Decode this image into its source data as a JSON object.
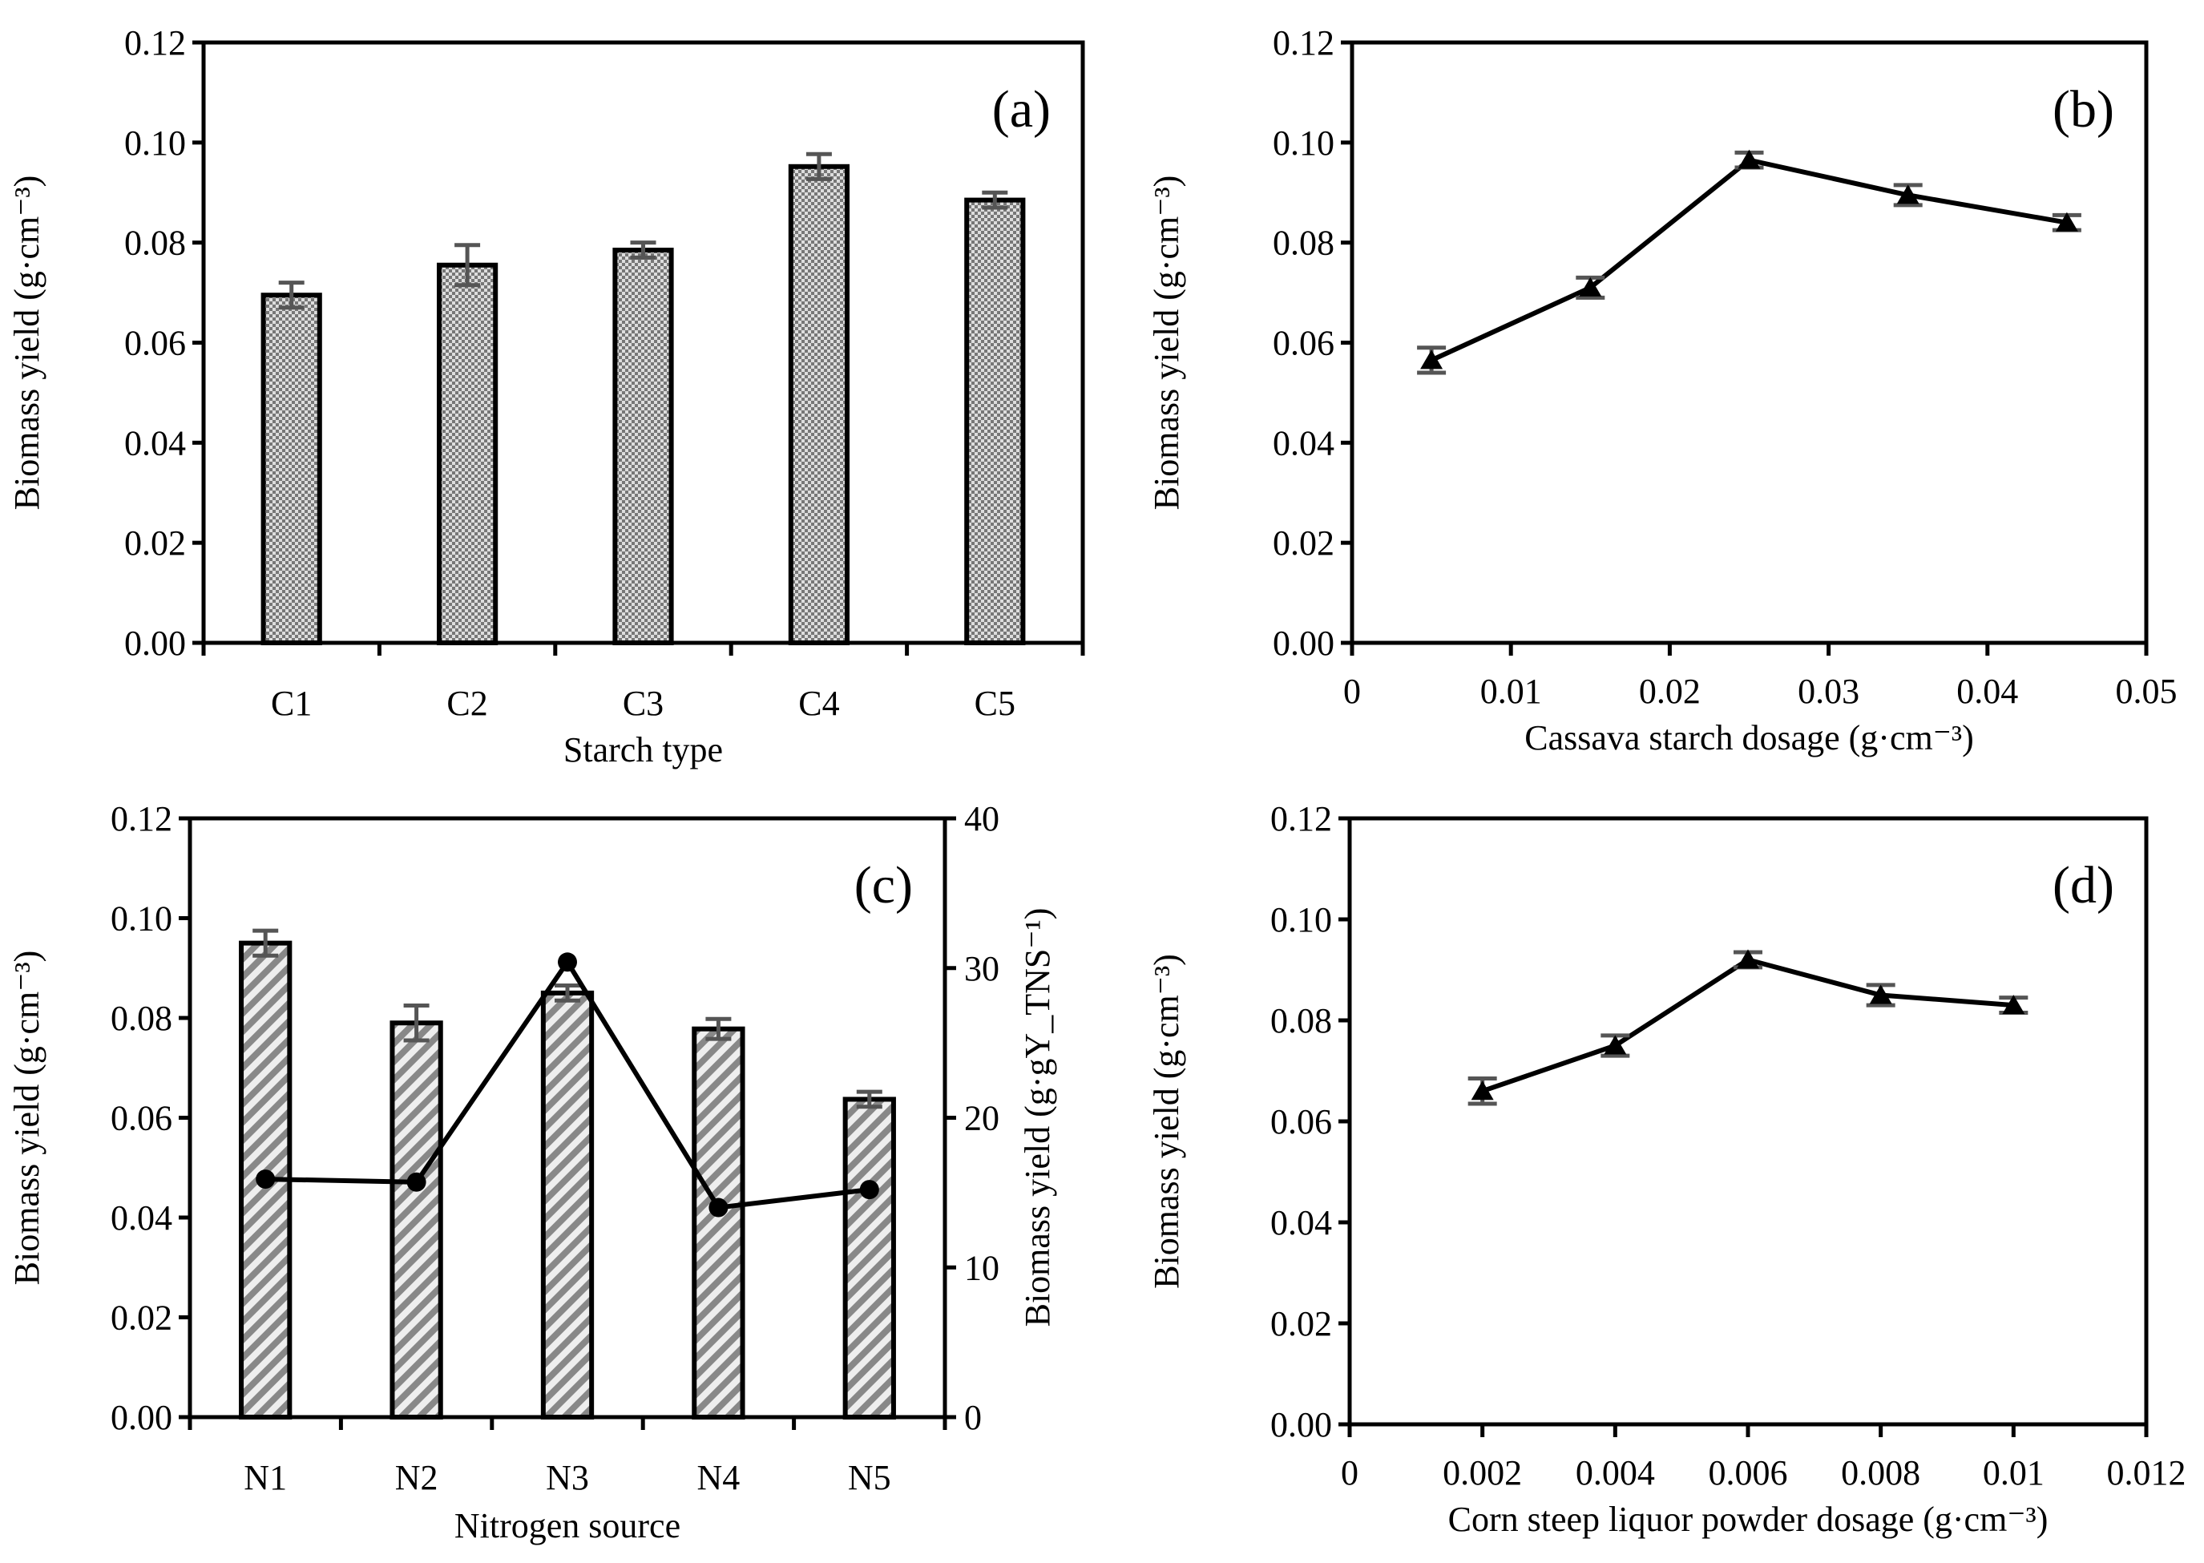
{
  "chart_data": [
    {
      "panel": "(a)",
      "type": "bar",
      "xlabel": "Starch type",
      "ylabel": "Biomass yield (g·cm⁻³)",
      "categories": [
        "C1",
        "C2",
        "C3",
        "C4",
        "C5"
      ],
      "values": [
        0.0695,
        0.0755,
        0.0785,
        0.0952,
        0.0885
      ],
      "errors": [
        0.0025,
        0.004,
        0.0015,
        0.0025,
        0.0015
      ],
      "ylim": [
        0,
        0.12
      ],
      "yticks": [
        "0.00",
        "0.02",
        "0.04",
        "0.06",
        "0.08",
        "0.10",
        "0.12"
      ],
      "pattern": "checker"
    },
    {
      "panel": "(b)",
      "type": "line",
      "xlabel": "Cassava starch dosage (g·cm⁻³)",
      "ylabel": "Biomass yield (g·cm⁻³)",
      "x": [
        0.005,
        0.015,
        0.025,
        0.035,
        0.045
      ],
      "values": [
        0.0565,
        0.071,
        0.0965,
        0.0895,
        0.084
      ],
      "errors": [
        0.0025,
        0.002,
        0.0015,
        0.002,
        0.0015
      ],
      "xlim": [
        0,
        0.05
      ],
      "xticks": [
        "0",
        "0.01",
        "0.02",
        "0.03",
        "0.04",
        "0.05"
      ],
      "ylim": [
        0,
        0.12
      ],
      "yticks": [
        "0.00",
        "0.02",
        "0.04",
        "0.06",
        "0.08",
        "0.10",
        "0.12"
      ],
      "marker": "triangle"
    },
    {
      "panel": "(c)",
      "type": "bar",
      "xlabel": "Nitrogen source",
      "ylabel": "Biomass yield (g·cm⁻³)",
      "y2label": "Biomass yield (g·gY_TNS⁻¹)",
      "y2label_parts": [
        "Biomass yield (g·gY",
        "TNS",
        "−1",
        ")"
      ],
      "categories": [
        "N1",
        "N2",
        "N3",
        "N4",
        "N5"
      ],
      "values": [
        0.095,
        0.079,
        0.085,
        0.0778,
        0.0637
      ],
      "errors": [
        0.0025,
        0.0035,
        0.0015,
        0.002,
        0.0015
      ],
      "ylim": [
        0,
        0.12
      ],
      "yticks": [
        "0.00",
        "0.02",
        "0.04",
        "0.06",
        "0.08",
        "0.10",
        "0.12"
      ],
      "y2lim": [
        0,
        40
      ],
      "y2ticks": [
        "0",
        "10",
        "20",
        "30",
        "40"
      ],
      "line_values": [
        15.9,
        15.7,
        30.4,
        14.0,
        15.2
      ],
      "pattern": "diagonal"
    },
    {
      "panel": "(d)",
      "type": "line",
      "xlabel": "Corn steep liquor powder dosage (g·cm⁻³)",
      "ylabel": "Biomass yield (g·cm⁻³)",
      "x": [
        0.002,
        0.004,
        0.006,
        0.008,
        0.01
      ],
      "values": [
        0.066,
        0.075,
        0.092,
        0.085,
        0.083
      ],
      "errors": [
        0.0025,
        0.002,
        0.0015,
        0.002,
        0.0015
      ],
      "xlim": [
        0,
        0.012
      ],
      "xticks": [
        "0",
        "0.002",
        "0.004",
        "0.006",
        "0.008",
        "0.01",
        "0.012"
      ],
      "ylim": [
        0,
        0.12
      ],
      "yticks": [
        "0.00",
        "0.02",
        "0.04",
        "0.06",
        "0.08",
        "0.10",
        "0.12"
      ],
      "marker": "triangle"
    }
  ]
}
